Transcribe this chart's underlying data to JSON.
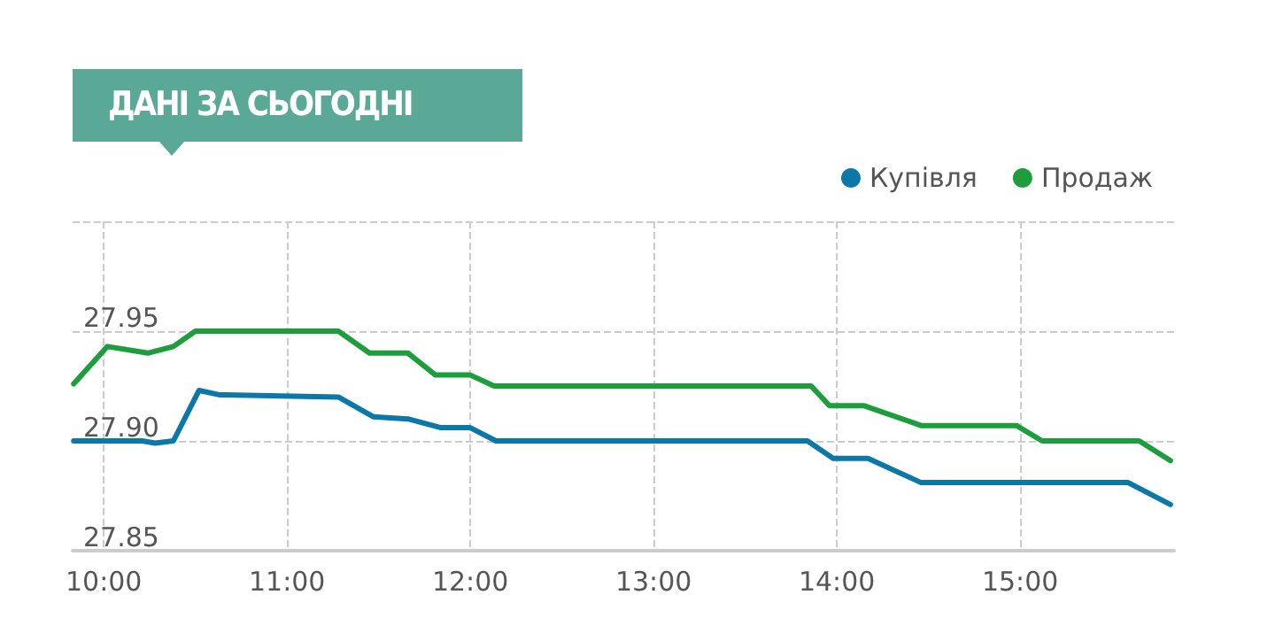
{
  "chart_data": {
    "type": "line",
    "title": "ДАНІ ЗА СЬОГОДНІ",
    "x": [
      9.836,
      10.02,
      10.24,
      10.38,
      10.5,
      11.28,
      11.45,
      11.66,
      11.81,
      12.0,
      12.13,
      13.86,
      13.96,
      14.15,
      14.46,
      14.98,
      15.12,
      15.65,
      15.82
    ],
    "series": [
      {
        "name": "Купівля",
        "color": "#0b78a8",
        "x": [
          9.836,
          10.21,
          10.28,
          10.38,
          10.52,
          10.63,
          11.28,
          11.47,
          11.66,
          11.84,
          12.0,
          12.14,
          13.84,
          13.98,
          14.17,
          14.46,
          15.59,
          15.82
        ],
        "values": [
          27.9,
          27.9,
          27.899,
          27.9,
          27.923,
          27.921,
          27.92,
          27.911,
          27.91,
          27.906,
          27.906,
          27.9,
          27.9,
          27.892,
          27.892,
          27.881,
          27.881,
          27.871
        ]
      },
      {
        "name": "Продаж",
        "color": "#1c9e3c",
        "values": [
          27.926,
          27.943,
          27.94,
          27.943,
          27.95,
          27.95,
          27.94,
          27.94,
          27.93,
          27.93,
          27.925,
          27.925,
          27.916,
          27.916,
          27.907,
          27.907,
          27.9,
          27.9,
          27.891
        ]
      }
    ],
    "xlim": [
      9.83,
      15.84
    ],
    "xticks": [
      {
        "value": 10,
        "label": "10:00"
      },
      {
        "value": 11,
        "label": "11:00"
      },
      {
        "value": 12,
        "label": "12:00"
      },
      {
        "value": 13,
        "label": "13:00"
      },
      {
        "value": 14,
        "label": "14:00"
      },
      {
        "value": 15,
        "label": "15:00"
      }
    ],
    "ylim": [
      27.85,
      28.0
    ],
    "yticks": [
      27.85,
      {
        "value": 27.9,
        "label": "27.90"
      },
      27.95,
      {
        "value": 28.0,
        "label": null
      }
    ],
    "grid": true,
    "legend": "top right",
    "line_style": "solid"
  }
}
